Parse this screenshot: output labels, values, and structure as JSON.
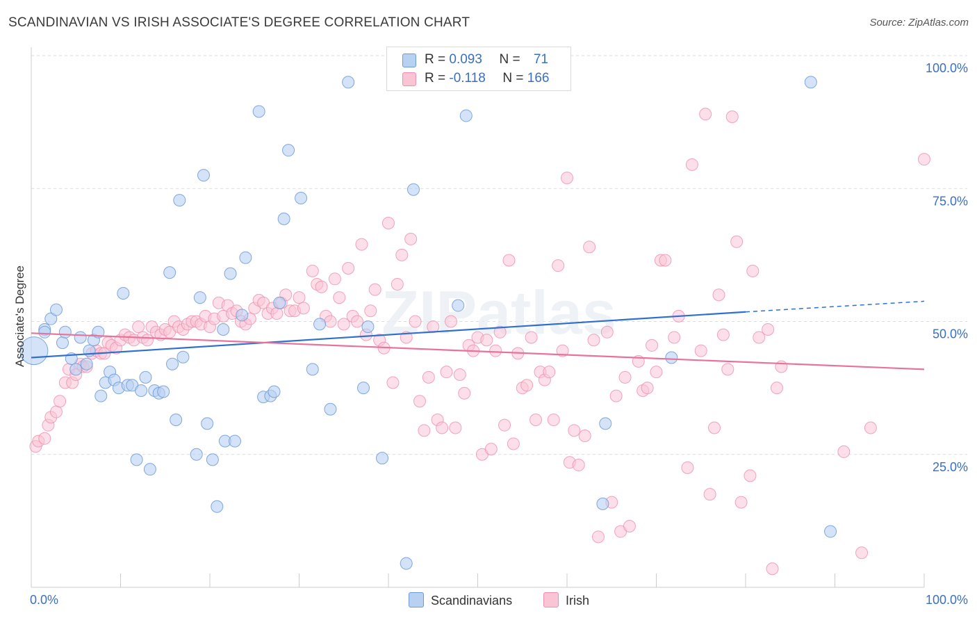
{
  "title": "SCANDINAVIAN VS IRISH ASSOCIATE'S DEGREE CORRELATION CHART",
  "source": "Source: ZipAtlas.com",
  "watermark": "ZIPatlas",
  "colors": {
    "scandinavians_fill": "#b8d1f2",
    "scandinavians_stroke": "#6c9ad8",
    "scandinavians_line": "#2f6fcf",
    "irish_fill": "#f9c5d5",
    "irish_stroke": "#ee8fae",
    "irish_line": "#e8729b",
    "axis_text": "#3b6fc2"
  },
  "legend": {
    "scandinavians": {
      "r_label": "R = ",
      "r_value": "0.093",
      "n_label": "N = ",
      "n_value": "71"
    },
    "irish": {
      "r_label": "R = ",
      "r_value": "-0.118",
      "n_label": "N = ",
      "n_value": "166"
    }
  },
  "bottom_legend": {
    "scandinavians": "Scandinavians",
    "irish": "Irish"
  },
  "chart_data": {
    "type": "scatter",
    "title": "SCANDINAVIAN VS IRISH ASSOCIATE'S DEGREE CORRELATION CHART",
    "xlabel": "",
    "ylabel": "Associate's Degree",
    "xlim": [
      0,
      100
    ],
    "ylim": [
      0,
      100
    ],
    "x_tick_labels": [
      "0.0%",
      "100.0%"
    ],
    "y_tick_labels": [
      "25.0%",
      "50.0%",
      "75.0%",
      "100.0%"
    ],
    "y_ticks": [
      25,
      50,
      75,
      100
    ],
    "grid": true,
    "series": [
      {
        "name": "Scandinavians",
        "trend": {
          "x": [
            0,
            80
          ],
          "y": [
            43.2,
            51.8
          ],
          "dashed_to": [
            100,
            53.8
          ]
        },
        "points": [
          [
            0.3,
            44.5
          ],
          [
            1.5,
            48.5
          ],
          [
            1.5,
            48.0
          ],
          [
            2.2,
            50.5
          ],
          [
            2.8,
            52.2
          ],
          [
            3.5,
            46.0
          ],
          [
            3.8,
            48.0
          ],
          [
            4.5,
            43.0
          ],
          [
            5.0,
            41.0
          ],
          [
            5.5,
            47.0
          ],
          [
            6.2,
            42.0
          ],
          [
            6.5,
            44.5
          ],
          [
            7.0,
            46.5
          ],
          [
            7.5,
            48.0
          ],
          [
            7.8,
            36.0
          ],
          [
            8.3,
            38.5
          ],
          [
            8.8,
            40.5
          ],
          [
            9.3,
            39.0
          ],
          [
            9.8,
            37.5
          ],
          [
            10.3,
            55.3
          ],
          [
            10.8,
            38.0
          ],
          [
            11.3,
            38.0
          ],
          [
            11.8,
            24.0
          ],
          [
            12.3,
            37.0
          ],
          [
            12.8,
            39.5
          ],
          [
            13.3,
            22.2
          ],
          [
            13.8,
            37.0
          ],
          [
            14.3,
            36.5
          ],
          [
            14.8,
            36.8
          ],
          [
            15.5,
            59.2
          ],
          [
            15.8,
            42.0
          ],
          [
            16.2,
            31.5
          ],
          [
            16.6,
            72.8
          ],
          [
            17.0,
            43.3
          ],
          [
            18.5,
            25.0
          ],
          [
            18.9,
            54.5
          ],
          [
            19.3,
            77.5
          ],
          [
            19.7,
            30.8
          ],
          [
            20.3,
            24.0
          ],
          [
            20.8,
            15.2
          ],
          [
            21.5,
            48.5
          ],
          [
            21.7,
            27.5
          ],
          [
            22.3,
            59.0
          ],
          [
            22.8,
            27.5
          ],
          [
            23.6,
            51.2
          ],
          [
            24.0,
            62.0
          ],
          [
            25.5,
            89.5
          ],
          [
            26.0,
            35.8
          ],
          [
            26.8,
            36.0
          ],
          [
            27.2,
            36.8
          ],
          [
            27.8,
            53.5
          ],
          [
            28.3,
            69.3
          ],
          [
            28.8,
            82.2
          ],
          [
            30.2,
            73.2
          ],
          [
            31.5,
            41.0
          ],
          [
            32.3,
            49.5
          ],
          [
            33.5,
            33.5
          ],
          [
            35.5,
            95.0
          ],
          [
            37.2,
            37.5
          ],
          [
            37.7,
            49.0
          ],
          [
            39.3,
            24.3
          ],
          [
            42.0,
            4.5
          ],
          [
            42.8,
            74.8
          ],
          [
            47.8,
            53.0
          ],
          [
            48.7,
            88.7
          ],
          [
            64.3,
            30.8
          ],
          [
            64.0,
            15.7
          ],
          [
            71.7,
            43.2
          ],
          [
            87.3,
            95.0
          ],
          [
            89.5,
            10.5
          ]
        ],
        "sizes_note": "first point larger"
      },
      {
        "name": "Irish",
        "trend": {
          "x": [
            0,
            100
          ],
          "y": [
            47.8,
            41.0
          ]
        },
        "points": [
          [
            0.5,
            26.5
          ],
          [
            0.8,
            27.5
          ],
          [
            1.5,
            28.0
          ],
          [
            1.9,
            30.5
          ],
          [
            2.2,
            32.0
          ],
          [
            2.8,
            33.0
          ],
          [
            3.2,
            35.0
          ],
          [
            3.8,
            38.5
          ],
          [
            4.2,
            41.0
          ],
          [
            4.6,
            38.5
          ],
          [
            5.0,
            40.0
          ],
          [
            5.5,
            42.0
          ],
          [
            5.8,
            41.5
          ],
          [
            6.2,
            41.5
          ],
          [
            6.8,
            44.0
          ],
          [
            7.3,
            44.5
          ],
          [
            7.8,
            44.0
          ],
          [
            8.2,
            44.0
          ],
          [
            8.6,
            46.0
          ],
          [
            9.0,
            45.5
          ],
          [
            9.5,
            45.0
          ],
          [
            10.0,
            46.5
          ],
          [
            10.5,
            47.5
          ],
          [
            11.0,
            47.0
          ],
          [
            11.5,
            46.5
          ],
          [
            12.0,
            49.0
          ],
          [
            12.5,
            47.0
          ],
          [
            13.0,
            46.5
          ],
          [
            13.5,
            49.0
          ],
          [
            14.0,
            48.0
          ],
          [
            14.5,
            47.5
          ],
          [
            15.0,
            48.5
          ],
          [
            15.5,
            48.0
          ],
          [
            16.0,
            50.0
          ],
          [
            16.5,
            49.0
          ],
          [
            17.0,
            48.5
          ],
          [
            17.5,
            49.5
          ],
          [
            18.0,
            50.0
          ],
          [
            18.5,
            50.0
          ],
          [
            19.0,
            49.5
          ],
          [
            19.5,
            51.0
          ],
          [
            20.0,
            49.0
          ],
          [
            20.5,
            50.5
          ],
          [
            21.0,
            53.5
          ],
          [
            21.5,
            51.0
          ],
          [
            22.0,
            53.0
          ],
          [
            22.5,
            51.5
          ],
          [
            23.0,
            52.0
          ],
          [
            23.5,
            50.0
          ],
          [
            24.0,
            49.5
          ],
          [
            24.5,
            50.5
          ],
          [
            25.0,
            52.5
          ],
          [
            25.5,
            54.0
          ],
          [
            26.0,
            53.5
          ],
          [
            26.5,
            51.5
          ],
          [
            27.0,
            52.5
          ],
          [
            27.5,
            51.5
          ],
          [
            28.0,
            53.5
          ],
          [
            28.5,
            55.0
          ],
          [
            29.0,
            52.0
          ],
          [
            29.5,
            52.0
          ],
          [
            30.0,
            54.5
          ],
          [
            30.5,
            52.5
          ],
          [
            31.5,
            59.5
          ],
          [
            32.0,
            57.0
          ],
          [
            32.5,
            56.5
          ],
          [
            33.0,
            51.0
          ],
          [
            33.5,
            50.0
          ],
          [
            34.0,
            58.0
          ],
          [
            34.5,
            54.5
          ],
          [
            35.0,
            49.5
          ],
          [
            35.5,
            60.0
          ],
          [
            36.0,
            51.0
          ],
          [
            36.5,
            50.0
          ],
          [
            37.0,
            64.5
          ],
          [
            37.5,
            47.5
          ],
          [
            38.0,
            52.0
          ],
          [
            38.5,
            56.0
          ],
          [
            39.0,
            46.5
          ],
          [
            39.5,
            45.0
          ],
          [
            40.0,
            68.5
          ],
          [
            40.5,
            38.5
          ],
          [
            41.0,
            57.0
          ],
          [
            41.5,
            62.5
          ],
          [
            42.0,
            47.0
          ],
          [
            42.5,
            65.5
          ],
          [
            43.0,
            50.0
          ],
          [
            43.5,
            35.0
          ],
          [
            44.0,
            29.5
          ],
          [
            44.5,
            39.5
          ],
          [
            45.0,
            49.0
          ],
          [
            45.5,
            31.5
          ],
          [
            46.0,
            30.0
          ],
          [
            46.5,
            40.5
          ],
          [
            47.0,
            50.0
          ],
          [
            47.5,
            30.0
          ],
          [
            48.0,
            40.0
          ],
          [
            48.5,
            36.5
          ],
          [
            49.0,
            45.5
          ],
          [
            49.5,
            44.5
          ],
          [
            50.0,
            47.0
          ],
          [
            50.5,
            25.0
          ],
          [
            51.0,
            46.5
          ],
          [
            51.5,
            26.0
          ],
          [
            52.0,
            44.5
          ],
          [
            52.5,
            48.0
          ],
          [
            53.0,
            30.5
          ],
          [
            53.5,
            61.5
          ],
          [
            54.0,
            27.0
          ],
          [
            54.5,
            44.0
          ],
          [
            55.0,
            37.5
          ],
          [
            55.5,
            38.0
          ],
          [
            56.0,
            47.0
          ],
          [
            56.5,
            31.5
          ],
          [
            57.0,
            40.5
          ],
          [
            57.5,
            39.0
          ],
          [
            58.0,
            40.5
          ],
          [
            58.5,
            31.5
          ],
          [
            59.0,
            60.5
          ],
          [
            59.5,
            44.5
          ],
          [
            60.0,
            77.0
          ],
          [
            60.3,
            23.5
          ],
          [
            60.8,
            29.5
          ],
          [
            61.3,
            23.0
          ],
          [
            62.0,
            28.5
          ],
          [
            62.5,
            64.0
          ],
          [
            63.0,
            46.5
          ],
          [
            63.5,
            9.5
          ],
          [
            64.5,
            48.0
          ],
          [
            65.0,
            16.0
          ],
          [
            65.5,
            36.0
          ],
          [
            66.0,
            10.5
          ],
          [
            66.5,
            39.5
          ],
          [
            67.0,
            11.5
          ],
          [
            68.0,
            42.5
          ],
          [
            68.5,
            37.0
          ],
          [
            69.0,
            37.5
          ],
          [
            69.5,
            45.5
          ],
          [
            70.0,
            40.5
          ],
          [
            70.5,
            61.5
          ],
          [
            71.0,
            61.5
          ],
          [
            72.0,
            47.0
          ],
          [
            72.5,
            51.0
          ],
          [
            73.5,
            22.5
          ],
          [
            74.0,
            79.5
          ],
          [
            75.0,
            44.5
          ],
          [
            75.5,
            89.0
          ],
          [
            76.0,
            17.5
          ],
          [
            76.5,
            30.0
          ],
          [
            77.0,
            55.0
          ],
          [
            77.5,
            47.5
          ],
          [
            78.0,
            41.0
          ],
          [
            78.5,
            88.5
          ],
          [
            79.0,
            65.0
          ],
          [
            79.5,
            16.0
          ],
          [
            80.5,
            21.0
          ],
          [
            80.8,
            59.5
          ],
          [
            81.5,
            47.0
          ],
          [
            82.5,
            48.5
          ],
          [
            83.5,
            37.5
          ],
          [
            84.0,
            41.5
          ],
          [
            83.0,
            3.5
          ],
          [
            91.0,
            25.5
          ],
          [
            93.0,
            6.5
          ],
          [
            94.0,
            30.0
          ],
          [
            100.0,
            80.5
          ]
        ]
      }
    ]
  }
}
